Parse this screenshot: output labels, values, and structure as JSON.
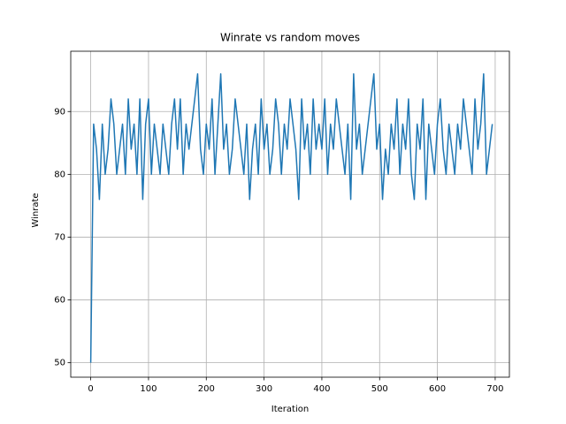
{
  "chart_data": {
    "type": "line",
    "title": "Winrate vs random moves",
    "x_label": "Iteration",
    "y_label": "Winrate",
    "x": [
      0,
      5,
      10,
      15,
      20,
      25,
      30,
      35,
      40,
      45,
      50,
      55,
      60,
      65,
      70,
      75,
      80,
      85,
      90,
      95,
      100,
      105,
      110,
      115,
      120,
      125,
      130,
      135,
      140,
      145,
      150,
      155,
      160,
      165,
      170,
      175,
      180,
      185,
      190,
      195,
      200,
      205,
      210,
      215,
      220,
      225,
      230,
      235,
      240,
      245,
      250,
      255,
      260,
      265,
      270,
      275,
      280,
      285,
      290,
      295,
      300,
      305,
      310,
      315,
      320,
      325,
      330,
      335,
      340,
      345,
      350,
      355,
      360,
      365,
      370,
      375,
      380,
      385,
      390,
      395,
      400,
      405,
      410,
      415,
      420,
      425,
      430,
      435,
      440,
      445,
      450,
      455,
      460,
      465,
      470,
      475,
      480,
      485,
      490,
      495,
      500,
      505,
      510,
      515,
      520,
      525,
      530,
      535,
      540,
      545,
      550,
      555,
      560,
      565,
      570,
      575,
      580,
      585,
      590,
      595,
      600,
      605,
      610,
      615,
      620,
      625,
      630,
      635,
      640,
      645,
      650,
      655,
      660,
      665,
      670,
      675,
      680,
      685,
      690,
      695
    ],
    "values": [
      50,
      88,
      84,
      76,
      88,
      80,
      84,
      92,
      88,
      80,
      84,
      88,
      80,
      92,
      84,
      88,
      80,
      92,
      76,
      88,
      92,
      80,
      88,
      84,
      80,
      88,
      84,
      80,
      88,
      92,
      84,
      92,
      80,
      88,
      84,
      88,
      92,
      96,
      84,
      80,
      88,
      84,
      92,
      80,
      88,
      96,
      84,
      88,
      80,
      84,
      92,
      88,
      84,
      80,
      88,
      76,
      84,
      88,
      80,
      92,
      84,
      88,
      80,
      84,
      92,
      88,
      80,
      88,
      84,
      92,
      88,
      84,
      76,
      92,
      84,
      88,
      80,
      92,
      84,
      88,
      84,
      92,
      80,
      88,
      84,
      92,
      88,
      84,
      80,
      88,
      76,
      96,
      84,
      88,
      80,
      84,
      88,
      92,
      96,
      84,
      88,
      76,
      84,
      80,
      88,
      84,
      92,
      80,
      88,
      84,
      92,
      80,
      76,
      88,
      84,
      92,
      76,
      88,
      84,
      80,
      88,
      92,
      84,
      80,
      88,
      84,
      80,
      88,
      84,
      92,
      88,
      84,
      80,
      92,
      84,
      88,
      96,
      80,
      84,
      88
    ],
    "color": "#1f77b4",
    "xlim": [
      -34.6,
      724.6
    ],
    "ylim": [
      47.7,
      99.6
    ],
    "xticks": [
      0,
      100,
      200,
      300,
      400,
      500,
      600,
      700
    ],
    "yticks": [
      50,
      60,
      70,
      80,
      90
    ],
    "grid": true
  }
}
